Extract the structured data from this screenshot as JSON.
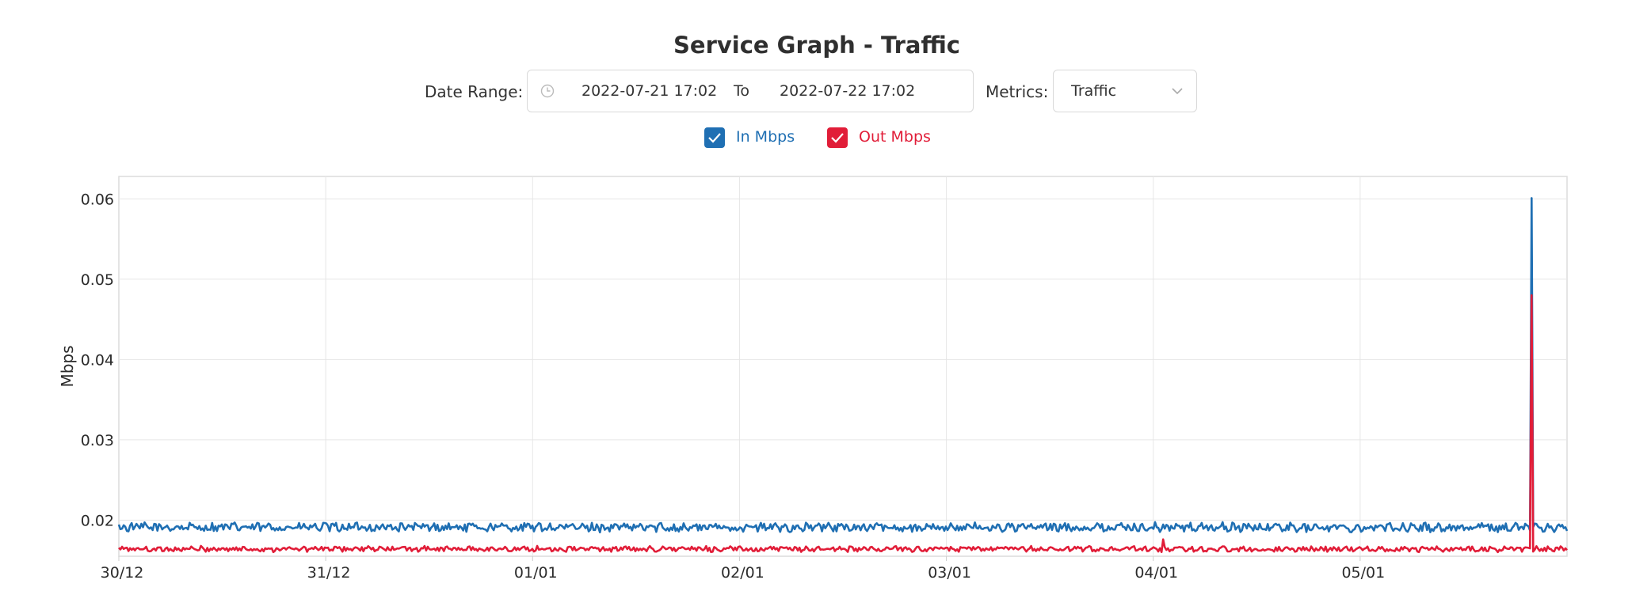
{
  "page": {
    "title": "Service Graph - Traffic",
    "date_range_label": "Date Range:",
    "date_from": "2022-07-21 17:02",
    "to_label": "To",
    "date_to": "2022-07-22 17:02",
    "metrics_label": "Metrics:",
    "metrics_value": "Traffic"
  },
  "legend": {
    "in_label": "In Mbps",
    "out_label": "Out Mbps",
    "in_color": "#1f6fb3",
    "out_color": "#e11d38"
  },
  "chart_data": {
    "type": "line",
    "title": "Service Graph - Traffic",
    "xlabel": "",
    "ylabel": "Mbps",
    "ylim": [
      0.0155,
      0.0628
    ],
    "xlim": [
      0,
      7
    ],
    "yticks": [
      0.02,
      0.03,
      0.04,
      0.05,
      0.06
    ],
    "ytick_labels": [
      "0.02",
      "0.03",
      "0.04",
      "0.05",
      "0.06"
    ],
    "xticks": [
      0,
      1,
      2,
      3,
      4,
      5,
      6
    ],
    "xtick_labels": [
      "30/12",
      "31/12",
      "01/01",
      "02/01",
      "03/01",
      "04/01",
      "05/01"
    ],
    "grid": true,
    "legend_position": "top-center",
    "series": [
      {
        "name": "In Mbps",
        "color": "#1f6fb3",
        "baseline": 0.0191,
        "noise": 0.0005,
        "spikes": [
          [
            6.83,
            0.0601
          ]
        ]
      },
      {
        "name": "Out Mbps",
        "color": "#e11d38",
        "baseline": 0.0164,
        "noise": 0.0003,
        "spikes": [
          [
            6.83,
            0.048
          ],
          [
            5.05,
            0.0176
          ]
        ]
      }
    ]
  }
}
